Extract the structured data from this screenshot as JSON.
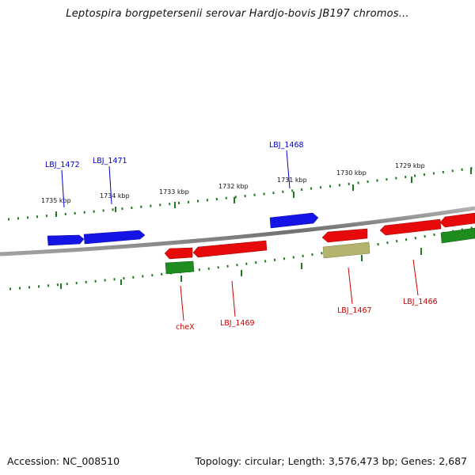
{
  "title": "Leptospira borgpetersenii serovar Hardjo-bovis JB197 chromos...",
  "footer": {
    "accession": "Accession: NC_008510",
    "summary": "Topology: circular; Length: 3,576,473 bp; Genes: 2,687"
  },
  "colors": {
    "forward_gene": "#1414e6",
    "reverse_gene": "#e60a0a",
    "reverse_cds_green": "#1e8c1e",
    "reverse_cds_khaki": "#b4b46e",
    "backbone": "#808080",
    "tick": "#1f7a1f",
    "forward_label": "#0000cc",
    "reverse_label": "#cc0000"
  },
  "scale_labels": [
    "1735 kbp",
    "1734 kbp",
    "1733 kbp",
    "1732 kbp",
    "1731 kbp",
    "1730 kbp",
    "1729 kbp"
  ],
  "gene_labels": {
    "forward": [
      "LBJ_1472",
      "LBJ_1471",
      "LBJ_1468"
    ],
    "reverse": [
      "cheX",
      "LBJ_1469",
      "LBJ_1467",
      "LBJ_1466"
    ]
  }
}
